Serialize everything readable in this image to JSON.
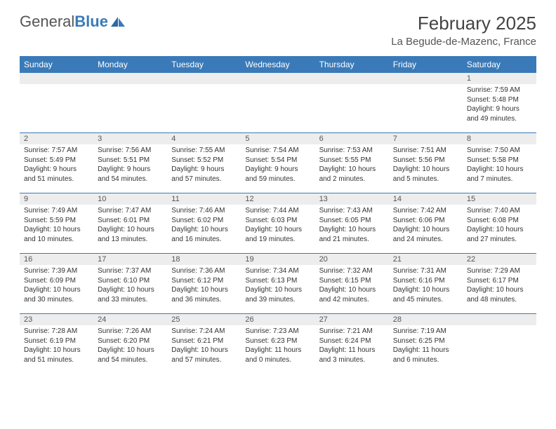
{
  "brand": {
    "name_a": "General",
    "name_b": "Blue"
  },
  "title": {
    "month": "February 2025",
    "location": "La Begude-de-Mazenc, France"
  },
  "colors": {
    "header_bg": "#3a7ab8",
    "header_fg": "#ffffff",
    "daynum_bg": "#ededed",
    "rule": "#3a7ab8",
    "text": "#333333"
  },
  "table": {
    "columns": [
      "Sunday",
      "Monday",
      "Tuesday",
      "Wednesday",
      "Thursday",
      "Friday",
      "Saturday"
    ],
    "weeks": [
      [
        {
          "n": "",
          "l": []
        },
        {
          "n": "",
          "l": []
        },
        {
          "n": "",
          "l": []
        },
        {
          "n": "",
          "l": []
        },
        {
          "n": "",
          "l": []
        },
        {
          "n": "",
          "l": []
        },
        {
          "n": "1",
          "l": [
            "Sunrise: 7:59 AM",
            "Sunset: 5:48 PM",
            "Daylight: 9 hours and 49 minutes."
          ]
        }
      ],
      [
        {
          "n": "2",
          "l": [
            "Sunrise: 7:57 AM",
            "Sunset: 5:49 PM",
            "Daylight: 9 hours and 51 minutes."
          ]
        },
        {
          "n": "3",
          "l": [
            "Sunrise: 7:56 AM",
            "Sunset: 5:51 PM",
            "Daylight: 9 hours and 54 minutes."
          ]
        },
        {
          "n": "4",
          "l": [
            "Sunrise: 7:55 AM",
            "Sunset: 5:52 PM",
            "Daylight: 9 hours and 57 minutes."
          ]
        },
        {
          "n": "5",
          "l": [
            "Sunrise: 7:54 AM",
            "Sunset: 5:54 PM",
            "Daylight: 9 hours and 59 minutes."
          ]
        },
        {
          "n": "6",
          "l": [
            "Sunrise: 7:53 AM",
            "Sunset: 5:55 PM",
            "Daylight: 10 hours and 2 minutes."
          ]
        },
        {
          "n": "7",
          "l": [
            "Sunrise: 7:51 AM",
            "Sunset: 5:56 PM",
            "Daylight: 10 hours and 5 minutes."
          ]
        },
        {
          "n": "8",
          "l": [
            "Sunrise: 7:50 AM",
            "Sunset: 5:58 PM",
            "Daylight: 10 hours and 7 minutes."
          ]
        }
      ],
      [
        {
          "n": "9",
          "l": [
            "Sunrise: 7:49 AM",
            "Sunset: 5:59 PM",
            "Daylight: 10 hours and 10 minutes."
          ]
        },
        {
          "n": "10",
          "l": [
            "Sunrise: 7:47 AM",
            "Sunset: 6:01 PM",
            "Daylight: 10 hours and 13 minutes."
          ]
        },
        {
          "n": "11",
          "l": [
            "Sunrise: 7:46 AM",
            "Sunset: 6:02 PM",
            "Daylight: 10 hours and 16 minutes."
          ]
        },
        {
          "n": "12",
          "l": [
            "Sunrise: 7:44 AM",
            "Sunset: 6:03 PM",
            "Daylight: 10 hours and 19 minutes."
          ]
        },
        {
          "n": "13",
          "l": [
            "Sunrise: 7:43 AM",
            "Sunset: 6:05 PM",
            "Daylight: 10 hours and 21 minutes."
          ]
        },
        {
          "n": "14",
          "l": [
            "Sunrise: 7:42 AM",
            "Sunset: 6:06 PM",
            "Daylight: 10 hours and 24 minutes."
          ]
        },
        {
          "n": "15",
          "l": [
            "Sunrise: 7:40 AM",
            "Sunset: 6:08 PM",
            "Daylight: 10 hours and 27 minutes."
          ]
        }
      ],
      [
        {
          "n": "16",
          "l": [
            "Sunrise: 7:39 AM",
            "Sunset: 6:09 PM",
            "Daylight: 10 hours and 30 minutes."
          ]
        },
        {
          "n": "17",
          "l": [
            "Sunrise: 7:37 AM",
            "Sunset: 6:10 PM",
            "Daylight: 10 hours and 33 minutes."
          ]
        },
        {
          "n": "18",
          "l": [
            "Sunrise: 7:36 AM",
            "Sunset: 6:12 PM",
            "Daylight: 10 hours and 36 minutes."
          ]
        },
        {
          "n": "19",
          "l": [
            "Sunrise: 7:34 AM",
            "Sunset: 6:13 PM",
            "Daylight: 10 hours and 39 minutes."
          ]
        },
        {
          "n": "20",
          "l": [
            "Sunrise: 7:32 AM",
            "Sunset: 6:15 PM",
            "Daylight: 10 hours and 42 minutes."
          ]
        },
        {
          "n": "21",
          "l": [
            "Sunrise: 7:31 AM",
            "Sunset: 6:16 PM",
            "Daylight: 10 hours and 45 minutes."
          ]
        },
        {
          "n": "22",
          "l": [
            "Sunrise: 7:29 AM",
            "Sunset: 6:17 PM",
            "Daylight: 10 hours and 48 minutes."
          ]
        }
      ],
      [
        {
          "n": "23",
          "l": [
            "Sunrise: 7:28 AM",
            "Sunset: 6:19 PM",
            "Daylight: 10 hours and 51 minutes."
          ]
        },
        {
          "n": "24",
          "l": [
            "Sunrise: 7:26 AM",
            "Sunset: 6:20 PM",
            "Daylight: 10 hours and 54 minutes."
          ]
        },
        {
          "n": "25",
          "l": [
            "Sunrise: 7:24 AM",
            "Sunset: 6:21 PM",
            "Daylight: 10 hours and 57 minutes."
          ]
        },
        {
          "n": "26",
          "l": [
            "Sunrise: 7:23 AM",
            "Sunset: 6:23 PM",
            "Daylight: 11 hours and 0 minutes."
          ]
        },
        {
          "n": "27",
          "l": [
            "Sunrise: 7:21 AM",
            "Sunset: 6:24 PM",
            "Daylight: 11 hours and 3 minutes."
          ]
        },
        {
          "n": "28",
          "l": [
            "Sunrise: 7:19 AM",
            "Sunset: 6:25 PM",
            "Daylight: 11 hours and 6 minutes."
          ]
        },
        {
          "n": "",
          "l": []
        }
      ]
    ]
  }
}
